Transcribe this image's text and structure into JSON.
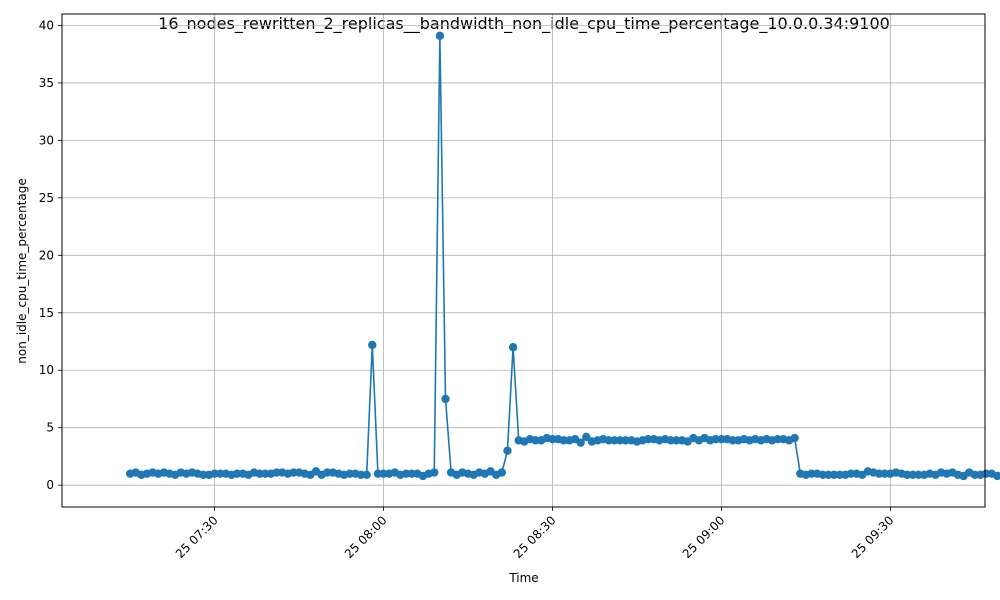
{
  "chart_data": {
    "type": "line",
    "title": "16_nodes_rewritten_2_replicas__bandwidth_non_idle_cpu_time_percentage_10.0.0.34:9100",
    "xlabel": "Time",
    "ylabel": "non_idle_cpu_time_percentage",
    "x_ticks": [
      "25 07:30",
      "25 08:00",
      "25 08:30",
      "25 09:00",
      "25 09:30"
    ],
    "x_tick_minutes": [
      450,
      480,
      510,
      540,
      570
    ],
    "y_ticks": [
      "0",
      "5",
      "10",
      "15",
      "20",
      "25",
      "30",
      "35",
      "40"
    ],
    "xlim_minutes": [
      422.9,
      586.8
    ],
    "ylim": [
      -1.9,
      41.0
    ],
    "grid": true,
    "color": "#1f77b4",
    "series": [
      {
        "x_start_minute": 435,
        "x_step_minutes": 1,
        "values": [
          1.0,
          1.1,
          0.9,
          1.0,
          1.1,
          1.0,
          1.1,
          1.0,
          0.9,
          1.1,
          1.0,
          1.1,
          1.0,
          0.9,
          0.9,
          1.0,
          1.0,
          1.0,
          0.9,
          1.0,
          1.0,
          0.9,
          1.1,
          1.0,
          1.0,
          1.0,
          1.1,
          1.1,
          1.0,
          1.1,
          1.1,
          1.0,
          0.9,
          1.2,
          0.9,
          1.1,
          1.1,
          1.0,
          0.9,
          1.0,
          1.0,
          0.9,
          0.9,
          12.2,
          1.0,
          1.0,
          1.0,
          1.1,
          0.9,
          1.0,
          1.0,
          1.0,
          0.8,
          1.0,
          1.1,
          39.1,
          7.5,
          1.1,
          0.9,
          1.1,
          1.0,
          0.9,
          1.1,
          1.0,
          1.2,
          0.9,
          1.1,
          3.0,
          12.0,
          3.9,
          3.8,
          4.0,
          3.9,
          3.9,
          4.1,
          4.0,
          4.0,
          3.9,
          3.9,
          4.0,
          3.7,
          4.2,
          3.8,
          3.9,
          4.0,
          3.9,
          3.9,
          3.9,
          3.9,
          3.9,
          3.8,
          3.9,
          4.0,
          4.0,
          3.9,
          4.0,
          3.9,
          3.9,
          3.9,
          3.8,
          4.1,
          3.9,
          4.1,
          3.9,
          4.0,
          4.0,
          4.0,
          3.9,
          3.9,
          4.0,
          3.9,
          4.0,
          3.9,
          4.0,
          3.9,
          4.0,
          4.0,
          3.9,
          4.1,
          1.0,
          0.9,
          1.0,
          1.0,
          0.9,
          0.9,
          0.9,
          0.9,
          0.9,
          1.0,
          1.0,
          0.9,
          1.2,
          1.1,
          1.0,
          1.0,
          1.0,
          1.1,
          1.0,
          0.9,
          0.9,
          0.9,
          0.9,
          1.0,
          0.9,
          1.1,
          1.0,
          1.1,
          0.9,
          0.8,
          1.1,
          0.9,
          0.9,
          1.0,
          1.0,
          0.8,
          0.9,
          0.9,
          1.1,
          1.2,
          1.0,
          1.2
        ]
      }
    ]
  }
}
